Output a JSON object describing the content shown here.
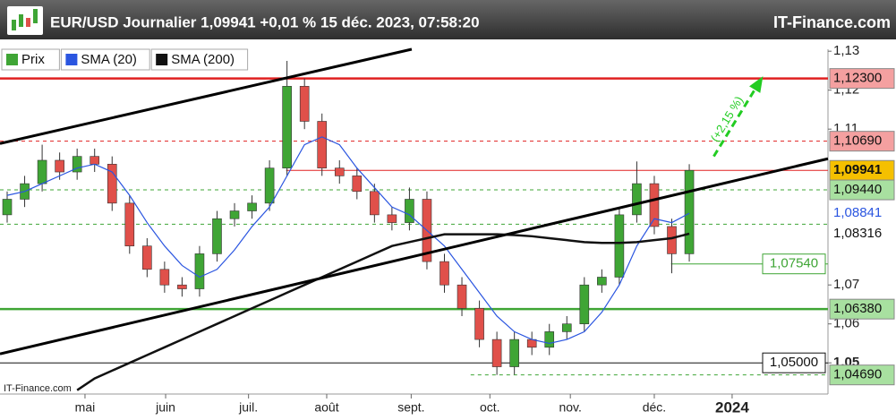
{
  "chart_data": {
    "type": "candlestick",
    "title": "EUR/USD Journalier 1,09941 +0,01 % 15 déc. 2023, 07:58:20",
    "brand": "IT-Finance.com",
    "watermark": "IT-Finance.com",
    "candles": {
      "name": "Prix",
      "up_color": "#3fa535",
      "down_color": "#e0504a",
      "open": [
        1.088,
        1.092,
        1.096,
        1.102,
        1.099,
        1.103,
        1.101,
        1.091,
        1.08,
        1.074,
        1.07,
        1.069,
        1.078,
        1.087,
        1.089,
        1.091,
        1.1,
        1.121,
        1.112,
        1.1,
        1.098,
        1.094,
        1.088,
        1.086,
        1.092,
        1.076,
        1.07,
        1.064,
        1.056,
        1.049,
        1.056,
        1.054,
        1.058,
        1.06,
        1.07,
        1.072,
        1.088,
        1.096,
        1.085,
        1.078
      ],
      "high": [
        1.094,
        1.098,
        1.106,
        1.104,
        1.105,
        1.105,
        1.103,
        1.093,
        1.082,
        1.076,
        1.072,
        1.08,
        1.089,
        1.091,
        1.093,
        1.102,
        1.1275,
        1.123,
        1.114,
        1.102,
        1.1,
        1.096,
        1.09,
        1.095,
        1.094,
        1.078,
        1.072,
        1.066,
        1.058,
        1.058,
        1.058,
        1.06,
        1.062,
        1.072,
        1.074,
        1.09,
        1.1017,
        1.098,
        1.087,
        1.101
      ],
      "low": [
        1.086,
        1.09,
        1.094,
        1.097,
        1.097,
        1.099,
        1.089,
        1.078,
        1.072,
        1.068,
        1.067,
        1.067,
        1.076,
        1.085,
        1.087,
        1.089,
        1.098,
        1.11,
        1.098,
        1.096,
        1.092,
        1.086,
        1.084,
        1.084,
        1.074,
        1.068,
        1.062,
        1.054,
        1.0469,
        1.047,
        1.052,
        1.052,
        1.056,
        1.058,
        1.068,
        1.07,
        1.086,
        1.083,
        1.073,
        1.076
      ],
      "close": [
        1.092,
        1.096,
        1.102,
        1.099,
        1.103,
        1.101,
        1.091,
        1.08,
        1.074,
        1.07,
        1.069,
        1.078,
        1.087,
        1.089,
        1.091,
        1.1,
        1.121,
        1.112,
        1.1,
        1.098,
        1.094,
        1.088,
        1.086,
        1.092,
        1.076,
        1.07,
        1.064,
        1.056,
        1.049,
        1.056,
        1.054,
        1.058,
        1.06,
        1.07,
        1.072,
        1.088,
        1.096,
        1.085,
        1.078,
        1.09941
      ]
    },
    "series": [
      {
        "name": "SMA (20)",
        "color": "#2a55e0",
        "values": [
          1.093,
          1.094,
          1.096,
          1.098,
          1.1,
          1.101,
          1.099,
          1.093,
          1.086,
          1.08,
          1.075,
          1.072,
          1.074,
          1.079,
          1.085,
          1.09,
          1.098,
          1.106,
          1.108,
          1.106,
          1.1,
          1.095,
          1.09,
          1.088,
          1.084,
          1.08,
          1.074,
          1.068,
          1.062,
          1.058,
          1.056,
          1.055,
          1.056,
          1.058,
          1.063,
          1.07,
          1.08,
          1.087,
          1.086,
          1.08841
        ]
      },
      {
        "name": "SMA (200)",
        "color": "#111111",
        "values": [
          null,
          null,
          null,
          null,
          1.043,
          1.046,
          1.048,
          1.05,
          1.052,
          1.054,
          1.056,
          1.058,
          1.06,
          1.062,
          1.064,
          1.066,
          1.068,
          1.07,
          1.072,
          1.074,
          1.076,
          1.078,
          1.08,
          1.081,
          1.082,
          1.083,
          1.083,
          1.083,
          1.083,
          1.0828,
          1.0825,
          1.082,
          1.0815,
          1.081,
          1.0808,
          1.0808,
          1.081,
          1.0815,
          1.082,
          1.08316
        ]
      }
    ],
    "xlim": [
      -0.41,
      46.93
    ],
    "xticks": [
      {
        "value": 4.45,
        "label": "mai"
      },
      {
        "value": 9.06,
        "label": "juin"
      },
      {
        "value": 13.8,
        "label": "juil."
      },
      {
        "value": 18.27,
        "label": "août"
      },
      {
        "value": 23.1,
        "label": "sept."
      },
      {
        "value": 27.6,
        "label": "oct."
      },
      {
        "value": 32.2,
        "label": "nov."
      },
      {
        "value": 37.0,
        "label": "déc."
      },
      {
        "value": 41.45,
        "label": "2024"
      }
    ],
    "ylim": [
      1.042,
      1.1305
    ],
    "yticks": [
      {
        "value": 1.13,
        "label": "1,13"
      },
      {
        "value": 1.12,
        "label": "1,12"
      },
      {
        "value": 1.11,
        "label": "1,11"
      },
      {
        "value": 1.07,
        "label": "1,07"
      },
      {
        "value": 1.06,
        "label": "1,06"
      },
      {
        "value": 1.05,
        "label": "1,05"
      }
    ],
    "trendlines": [
      {
        "x": [
          -0.41,
          23.13
        ],
        "y": [
          1.1063,
          1.1305
        ],
        "color": "#000000"
      },
      {
        "x": [
          -0.41,
          46.93
        ],
        "y": [
          1.0523,
          1.1024
        ],
        "color": "#000000"
      }
    ],
    "levels": [
      {
        "value": 1.123,
        "label": "1,12300",
        "color": "#e02020",
        "style": "thick",
        "label_style": "fill",
        "label_bg": "#f4a0a0",
        "x_start": -0.41
      },
      {
        "value": 1.1069,
        "label": "1,10690",
        "color": "#e02020",
        "style": "dashed",
        "label_style": "fill",
        "label_bg": "#f4a0a0",
        "x_start": -0.41
      },
      {
        "value": 1.09941,
        "label": "1,09941",
        "color": "#e02020",
        "style": "thin",
        "label_style": "fill",
        "label_bg": "#f5c000",
        "x_start": 15.95
      },
      {
        "value": 1.0944,
        "label": "1,09440",
        "color": "#3fa535",
        "style": "dashed",
        "label_style": "fill",
        "label_bg": "#a8e0a0",
        "x_start": -0.41
      },
      {
        "value": 1.0856,
        "color": "#3fa535",
        "style": "dashed",
        "x_start": -0.41
      },
      {
        "value": 1.08841,
        "label": "1,08841",
        "color": "#2a55e0",
        "style": "none",
        "label_style": "text",
        "label_bg": "#ffffff"
      },
      {
        "value": 1.08316,
        "label": "1,08316",
        "color": "#111111",
        "style": "none",
        "label_style": "text",
        "label_bg": "#ffffff"
      },
      {
        "value": 1.0754,
        "label": "1,07540",
        "color": "#3fa535",
        "style": "thin",
        "label_style": "box",
        "label_bg": "#ffffff",
        "x_start": 37.95
      },
      {
        "value": 1.0638,
        "label": "1,06380",
        "color": "#3fa535",
        "style": "thick",
        "label_style": "fill",
        "label_bg": "#a8e0a0",
        "x_start": -0.41
      },
      {
        "value": 1.05,
        "label": "1,05000",
        "color": "#111111",
        "style": "thin",
        "label_style": "box",
        "label_bg": "#ffffff",
        "x_start": -0.41
      },
      {
        "value": 1.0469,
        "label": "1,04690",
        "color": "#3fa535",
        "style": "dashed",
        "label_style": "fill",
        "label_bg": "#a8e0a0",
        "x_start": 26.5
      }
    ],
    "target": {
      "label": "(+2,15 %)",
      "x": [
        40.4,
        43.0
      ],
      "y": [
        1.103,
        1.122
      ],
      "color": "#22cc22"
    }
  }
}
